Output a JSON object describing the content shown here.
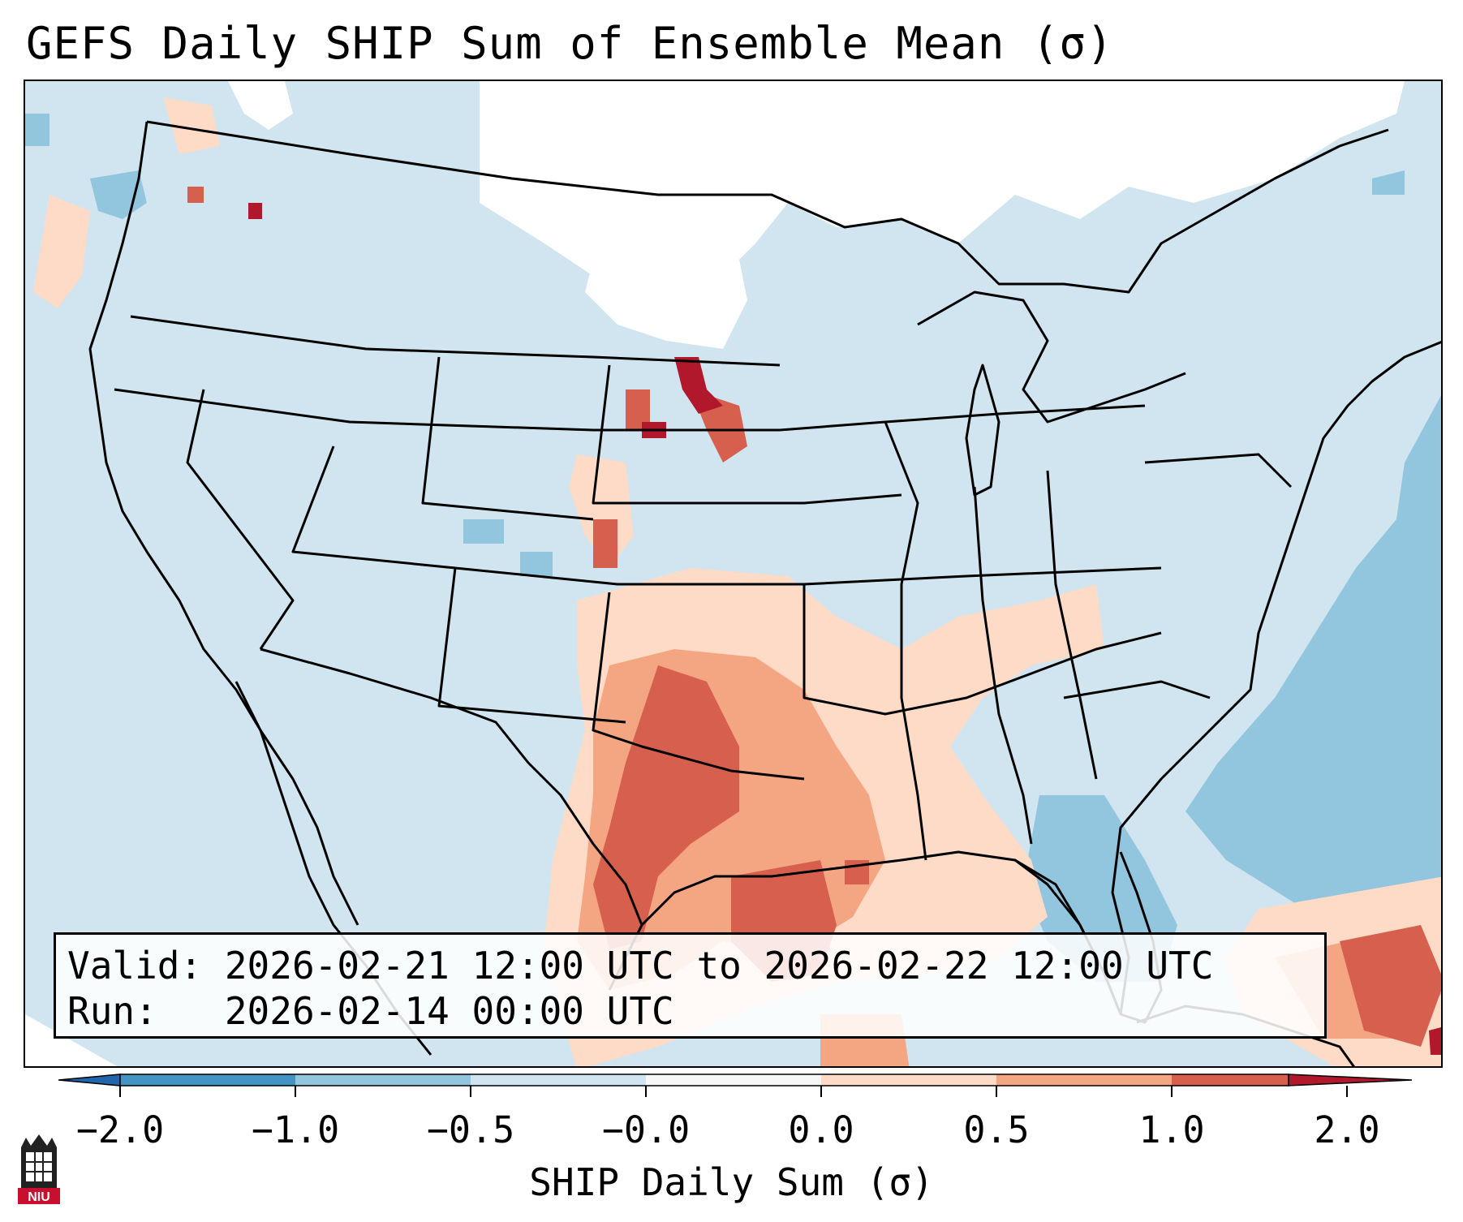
{
  "title": "GEFS Daily SHIP Sum of Ensemble Mean (σ)",
  "info": {
    "valid_line": "Valid: 2026-02-21 12:00 UTC to 2026-02-22 12:00 UTC",
    "run_line": "Run:   2026-02-14 00:00 UTC"
  },
  "colorbar": {
    "label": "SHIP Daily Sum (σ)",
    "tick_labels": [
      "−2.0",
      "−1.0",
      "−0.5",
      "−0.0",
      "0.0",
      "0.5",
      "1.0",
      "2.0"
    ],
    "bins": [
      {
        "range": "< -2.0",
        "color": "#2166ac"
      },
      {
        "range": "-2.0 to -1.0",
        "color": "#4393c3"
      },
      {
        "range": "-1.0 to -0.5",
        "color": "#92c5de"
      },
      {
        "range": "-0.5 to -0.0",
        "color": "#d1e5f0"
      },
      {
        "range": "-0.0 to 0.0",
        "color": "#f7f7f7"
      },
      {
        "range": "0.0 to 0.5",
        "color": "#fddbc7"
      },
      {
        "range": "0.5 to 1.0",
        "color": "#f4a582"
      },
      {
        "range": "1.0 to 2.0",
        "color": "#d6604d"
      },
      {
        "range": "> 2.0",
        "color": "#b2182b"
      }
    ]
  },
  "colors": {
    "light_blue": "#d1e5f0",
    "mid_blue": "#92c5de",
    "dark_blue": "#4393c3",
    "white": "#ffffff",
    "light_red": "#fddbc7",
    "mid_red": "#f4a582",
    "red": "#d6604d",
    "dark_red": "#b2182b"
  },
  "logo": {
    "text": "NIU",
    "icon": "niu-logo-icon"
  }
}
